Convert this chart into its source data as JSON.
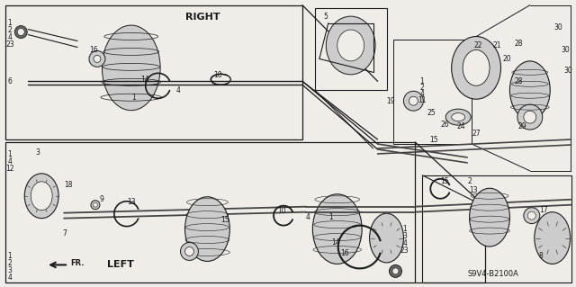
{
  "fig_width": 6.4,
  "fig_height": 3.19,
  "dpi": 100,
  "bg_color": "#f0ede8",
  "line_color": "#1a1a1a",
  "title": "RIGHT",
  "left_label": "LEFT",
  "fr_label": "FR.",
  "diagram_code": "S9V4-B2100A",
  "gray_fill": "#aaaaaa",
  "light_gray": "#cccccc",
  "dark_gray": "#666666"
}
